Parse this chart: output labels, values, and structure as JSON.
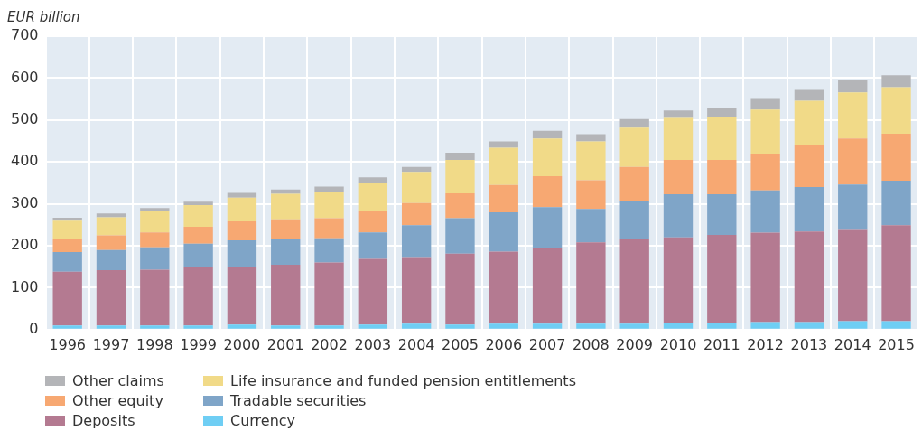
{
  "chart_data": {
    "type": "bar",
    "stacked": true,
    "ylabel": "EUR billion",
    "categories": [
      "1996",
      "1997",
      "1998",
      "1999",
      "2000",
      "2001",
      "2002",
      "2003",
      "2004",
      "2005",
      "2006",
      "2007",
      "2008",
      "2009",
      "2010",
      "2011",
      "2012",
      "2013",
      "2014",
      "2015"
    ],
    "series": [
      {
        "name": "Currency",
        "color": "#6fcef4",
        "values": [
          10,
          10,
          10,
          10,
          12,
          10,
          10,
          12,
          14,
          12,
          14,
          14,
          14,
          14,
          16,
          16,
          18,
          18,
          20,
          20
        ]
      },
      {
        "name": "Deposits",
        "color": "#b47a91",
        "values": [
          128,
          132,
          133,
          140,
          138,
          145,
          150,
          157,
          159,
          169,
          172,
          181,
          194,
          203,
          204,
          210,
          213,
          216,
          220,
          229
        ]
      },
      {
        "name": "Tradable securities",
        "color": "#7fa5c8",
        "values": [
          47,
          48,
          53,
          55,
          63,
          61,
          58,
          63,
          76,
          85,
          94,
          97,
          80,
          91,
          103,
          97,
          101,
          106,
          106,
          106
        ]
      },
      {
        "name": "Other equity",
        "color": "#f7a872",
        "values": [
          30,
          35,
          36,
          40,
          45,
          47,
          48,
          50,
          53,
          59,
          65,
          74,
          68,
          80,
          82,
          82,
          88,
          100,
          110,
          112
        ]
      },
      {
        "name": "Life insurance and funded pension entitlements",
        "color": "#f1da88",
        "values": [
          45,
          43,
          50,
          52,
          57,
          61,
          62,
          69,
          74,
          80,
          89,
          90,
          93,
          94,
          100,
          102,
          105,
          106,
          110,
          111
        ]
      },
      {
        "name": "Other claims",
        "color": "#b4b5b8",
        "values": [
          7,
          9,
          8,
          8,
          11,
          10,
          13,
          12,
          12,
          17,
          15,
          18,
          17,
          20,
          18,
          21,
          25,
          26,
          29,
          29
        ]
      }
    ],
    "ylim": [
      0,
      700
    ],
    "yticks": [
      0,
      100,
      200,
      300,
      400,
      500,
      600,
      700
    ],
    "grid": true,
    "legend": "bottom"
  }
}
